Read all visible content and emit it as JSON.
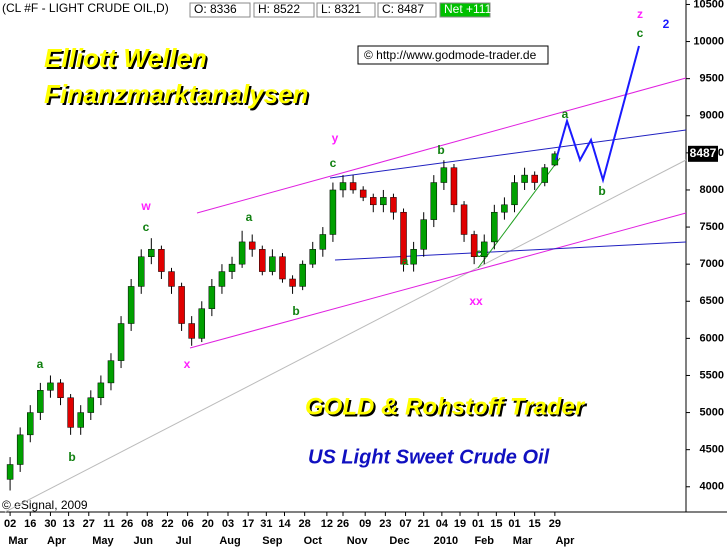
{
  "chart_data": {
    "type": "candlestick",
    "title": "(CL #F - LIGHT CRUDE OIL,D)",
    "info": [
      "O: 8336",
      "H: 8522",
      "L: 8321",
      "C: 8487",
      "Net +111"
    ],
    "headline": [
      "Elliott Wellen",
      "Finanzmarktanalysen"
    ],
    "source": "© http://www.godmode-trader.de",
    "footer": [
      "GOLD & Rohstoff Trader",
      "US Light Sweet Crude Oil"
    ],
    "copyright": "© eSignal, 2009",
    "wave_labels": [
      "a",
      "b",
      "w",
      "c",
      "x",
      "a",
      "b",
      "y",
      "c",
      "a",
      "b",
      "c",
      "xx",
      "a",
      "b",
      "z",
      "c",
      "2"
    ],
    "last_price": 8487,
    "x": [
      0,
      5,
      10,
      15,
      20,
      25,
      30,
      35,
      40,
      45,
      50,
      55,
      60,
      65,
      70,
      75,
      80,
      85,
      90,
      95,
      100,
      105,
      110,
      115,
      120,
      125,
      130,
      135,
      140,
      145,
      150,
      155,
      160,
      165,
      170,
      175,
      180,
      185,
      190,
      195,
      200,
      205,
      210,
      215,
      220,
      225,
      230,
      235,
      240,
      245,
      250,
      255,
      260,
      265,
      270
    ],
    "open": [
      4100,
      4300,
      4700,
      5000,
      5300,
      5400,
      5200,
      4800,
      5000,
      5200,
      5400,
      5700,
      6200,
      6700,
      7100,
      7200,
      6900,
      6700,
      6200,
      6000,
      6400,
      6700,
      6900,
      7000,
      7300,
      7200,
      6900,
      7100,
      6800,
      6700,
      7000,
      7200,
      7400,
      8000,
      8100,
      8000,
      7900,
      7800,
      7900,
      7700,
      7000,
      7200,
      7600,
      8100,
      8300,
      7800,
      7400,
      7100,
      7300,
      7700,
      7800,
      8100,
      8200,
      8100,
      8336
    ],
    "high": [
      4400,
      4800,
      5100,
      5400,
      5500,
      5450,
      5250,
      5100,
      5300,
      5500,
      5800,
      6300,
      6800,
      7200,
      7350,
      7250,
      6950,
      6750,
      6300,
      6500,
      6800,
      7000,
      7100,
      7450,
      7400,
      7250,
      7200,
      7150,
      6850,
      7050,
      7300,
      7500,
      8100,
      8200,
      8200,
      8050,
      7950,
      8000,
      7950,
      7750,
      7300,
      7700,
      8200,
      8400,
      8350,
      7850,
      7450,
      7400,
      7800,
      7900,
      8200,
      8300,
      8250,
      8350,
      8522
    ],
    "low": [
      3950,
      4200,
      4600,
      4900,
      5200,
      5100,
      4700,
      4700,
      4900,
      5100,
      5300,
      5600,
      6100,
      6600,
      7000,
      6800,
      6600,
      6100,
      5900,
      5950,
      6300,
      6600,
      6800,
      6950,
      7100,
      6850,
      6850,
      6750,
      6600,
      6650,
      6950,
      7100,
      7300,
      7900,
      7950,
      7850,
      7700,
      7700,
      7600,
      6900,
      6900,
      7100,
      7500,
      8000,
      7700,
      7300,
      7000,
      7000,
      7200,
      7600,
      7700,
      8000,
      8000,
      8050,
      8321
    ],
    "close": [
      4300,
      4700,
      5000,
      5300,
      5400,
      5200,
      4800,
      5000,
      5200,
      5400,
      5700,
      6200,
      6700,
      7100,
      7200,
      6900,
      6700,
      6200,
      6000,
      6400,
      6700,
      6900,
      7000,
      7300,
      7200,
      6900,
      7100,
      6800,
      6700,
      7000,
      7200,
      7400,
      8000,
      8100,
      8000,
      7900,
      7800,
      7900,
      7700,
      7000,
      7200,
      7600,
      8100,
      8300,
      7800,
      7400,
      7100,
      7300,
      7700,
      7800,
      8100,
      8200,
      8100,
      8300,
      8487
    ],
    "up_color": "#00a000",
    "down_color": "#e00000",
    "xlim": [
      -5,
      335
    ],
    "ylim": [
      3660,
      10560
    ],
    "yticks": [
      4000,
      4500,
      5000,
      5500,
      6000,
      6500,
      7000,
      7500,
      8000,
      8500,
      9000,
      9500,
      10000,
      10500
    ],
    "xticks": [
      {
        "value": 0,
        "label": "02"
      },
      {
        "value": 10,
        "label": "16"
      },
      {
        "value": 20,
        "label": "30"
      },
      {
        "value": 29,
        "label": "13"
      },
      {
        "value": 39,
        "label": "27"
      },
      {
        "value": 49,
        "label": "11"
      },
      {
        "value": 58,
        "label": "26"
      },
      {
        "value": 68,
        "label": "08"
      },
      {
        "value": 78,
        "label": "22"
      },
      {
        "value": 88,
        "label": "06"
      },
      {
        "value": 98,
        "label": "20"
      },
      {
        "value": 108,
        "label": "03"
      },
      {
        "value": 118,
        "label": "17"
      },
      {
        "value": 127,
        "label": "31"
      },
      {
        "value": 136,
        "label": "14"
      },
      {
        "value": 146,
        "label": "28"
      },
      {
        "value": 157,
        "label": "12"
      },
      {
        "value": 165,
        "label": "26"
      },
      {
        "value": 176,
        "label": "09"
      },
      {
        "value": 186,
        "label": "23"
      },
      {
        "value": 196,
        "label": "07"
      },
      {
        "value": 205,
        "label": "21"
      },
      {
        "value": 214,
        "label": "04"
      },
      {
        "value": 223,
        "label": "19"
      },
      {
        "value": 232,
        "label": "01"
      },
      {
        "value": 241,
        "label": "15"
      },
      {
        "value": 250,
        "label": "01"
      },
      {
        "value": 260,
        "label": "15"
      },
      {
        "value": 270,
        "label": "29"
      }
    ],
    "month_ticks": [
      {
        "value": 4,
        "label": "Mar"
      },
      {
        "value": 23,
        "label": "Apr"
      },
      {
        "value": 46,
        "label": "May"
      },
      {
        "value": 66,
        "label": "Jun"
      },
      {
        "value": 86,
        "label": "Jul"
      },
      {
        "value": 109,
        "label": "Aug"
      },
      {
        "value": 130,
        "label": "Sep"
      },
      {
        "value": 150,
        "label": "Oct"
      },
      {
        "value": 172,
        "label": "Nov"
      },
      {
        "value": 193,
        "label": "Dec"
      },
      {
        "value": 216,
        "label": "2010"
      },
      {
        "value": 235,
        "label": "Feb"
      },
      {
        "value": 254,
        "label": "Mar"
      },
      {
        "value": 275,
        "label": "Apr"
      }
    ]
  }
}
